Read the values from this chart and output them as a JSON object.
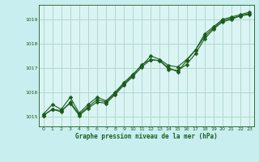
{
  "background_color": "#c8eef0",
  "plot_bg_color": "#daf4f4",
  "grid_color": "#b0d8cc",
  "line_color": "#1a5c1a",
  "marker_color": "#1a5c1a",
  "title": "Graphe pression niveau de la mer (hPa)",
  "xlim": [
    -0.5,
    23.5
  ],
  "ylim": [
    1014.6,
    1019.6
  ],
  "yticks": [
    1015,
    1016,
    1017,
    1018,
    1019
  ],
  "xticks": [
    0,
    1,
    2,
    3,
    4,
    5,
    6,
    7,
    8,
    9,
    10,
    11,
    12,
    13,
    14,
    15,
    16,
    17,
    18,
    19,
    20,
    21,
    22,
    23
  ],
  "series1_x": [
    0,
    1,
    2,
    3,
    4,
    5,
    6,
    7,
    8,
    9,
    10,
    11,
    12,
    13,
    14,
    15,
    16,
    17,
    18,
    19,
    20,
    21,
    22,
    23
  ],
  "series1_y": [
    1015.1,
    1015.5,
    1015.3,
    1015.8,
    1015.15,
    1015.5,
    1015.8,
    1015.65,
    1016.0,
    1016.4,
    1016.75,
    1017.1,
    1017.5,
    1017.35,
    1017.1,
    1017.05,
    1017.35,
    1017.75,
    1018.4,
    1018.7,
    1019.0,
    1019.1,
    1019.2,
    1019.3
  ],
  "series2_x": [
    0,
    1,
    2,
    3,
    4,
    5,
    6,
    7,
    8,
    9,
    10,
    11,
    12,
    13,
    14,
    15,
    16,
    17,
    18,
    19,
    20,
    21,
    22,
    23
  ],
  "series2_y": [
    1015.05,
    1015.3,
    1015.25,
    1015.55,
    1015.05,
    1015.35,
    1015.6,
    1015.55,
    1015.9,
    1016.3,
    1016.65,
    1017.05,
    1017.35,
    1017.3,
    1016.95,
    1016.9,
    1017.15,
    1017.6,
    1018.2,
    1018.6,
    1018.9,
    1019.0,
    1019.15,
    1019.2
  ],
  "series3_x": [
    0,
    1,
    2,
    3,
    4,
    5,
    6,
    7,
    8,
    9,
    10,
    11,
    12,
    13,
    14,
    15,
    16,
    17,
    18,
    19,
    20,
    21,
    22,
    23
  ],
  "series3_y": [
    1015.05,
    1015.3,
    1015.2,
    1015.6,
    1015.1,
    1015.4,
    1015.7,
    1015.6,
    1015.95,
    1016.35,
    1016.7,
    1017.15,
    1017.35,
    1017.3,
    1017.0,
    1016.85,
    1017.3,
    1017.75,
    1018.3,
    1018.65,
    1018.95,
    1019.05,
    1019.15,
    1019.25
  ]
}
